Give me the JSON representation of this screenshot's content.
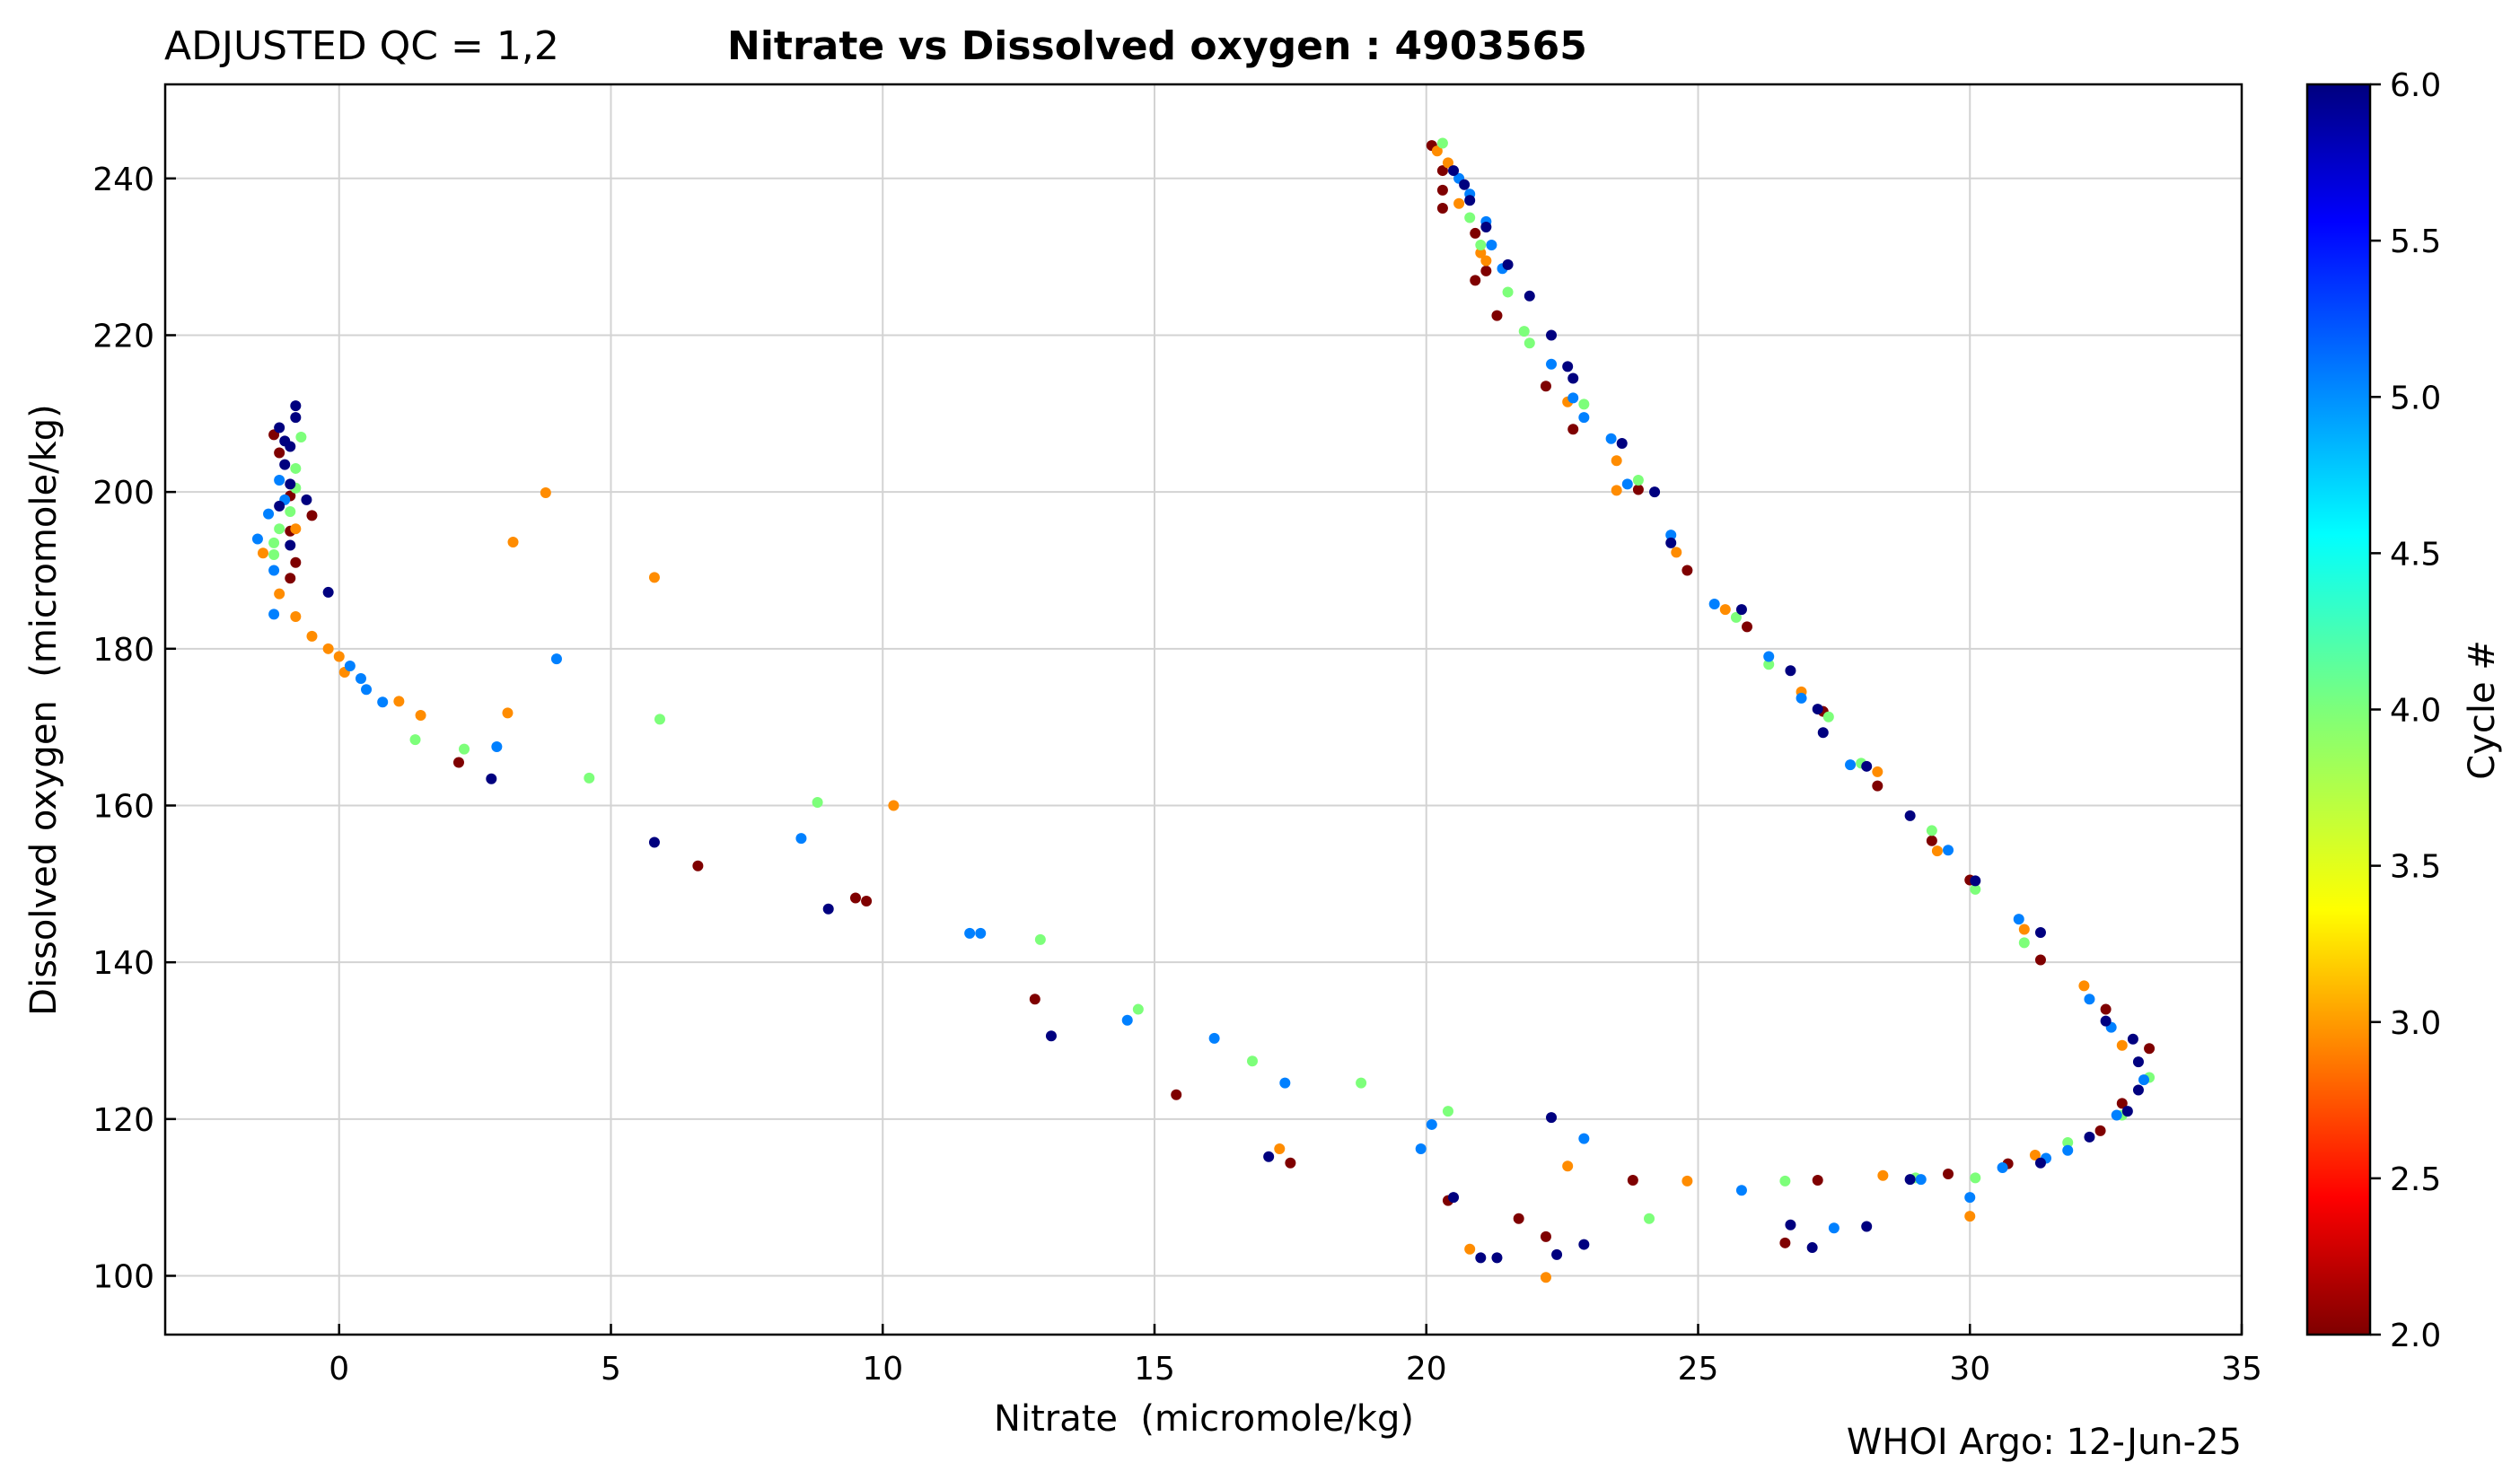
{
  "header": {
    "qc_label": "ADJUSTED QC = 1,2",
    "title": "Nitrate vs Dissolved oxygen : 4903565"
  },
  "footer": {
    "credit": "WHOI Argo: 12-Jun-25"
  },
  "chart_data": {
    "type": "scatter",
    "title": "Nitrate vs Dissolved oxygen : 4903565",
    "xlabel": "Nitrate  (micromole/kg)",
    "ylabel": "Dissolved oxygen  (micromole/kg)",
    "xlim": [
      -3.2,
      35
    ],
    "ylim": [
      92.5,
      252
    ],
    "x_ticks": [
      0,
      5,
      10,
      15,
      20,
      25,
      30,
      35
    ],
    "y_ticks": [
      100,
      120,
      140,
      160,
      180,
      200,
      220,
      240
    ],
    "grid": true,
    "colorbar": {
      "label": "Cycle #",
      "min": 2.0,
      "max": 6.0,
      "ticks": [
        "2.0",
        "2.5",
        "3.0",
        "3.5",
        "4.0",
        "4.5",
        "5.0",
        "5.5",
        "6.0"
      ],
      "colormap": "jet"
    },
    "series": [
      {
        "cycle": 2,
        "color": "#7f0000",
        "points": [
          [
            -1.2,
            207.3
          ],
          [
            -1.1,
            205.0
          ],
          [
            -0.9,
            199.5
          ],
          [
            -0.9,
            195.0
          ],
          [
            -0.8,
            191.0
          ],
          [
            -0.9,
            189.0
          ],
          [
            -0.5,
            197.0
          ],
          [
            2.2,
            165.5
          ],
          [
            6.6,
            152.3
          ],
          [
            9.5,
            148.2
          ],
          [
            9.7,
            147.8
          ],
          [
            12.8,
            135.3
          ],
          [
            15.4,
            123.1
          ],
          [
            17.5,
            114.4
          ],
          [
            20.1,
            244.2
          ],
          [
            20.3,
            241.0
          ],
          [
            20.3,
            238.5
          ],
          [
            20.3,
            236.2
          ],
          [
            20.9,
            233.0
          ],
          [
            20.9,
            227.0
          ],
          [
            21.1,
            228.2
          ],
          [
            21.3,
            222.5
          ],
          [
            22.2,
            213.5
          ],
          [
            22.7,
            208.0
          ],
          [
            23.9,
            200.3
          ],
          [
            24.8,
            190.0
          ],
          [
            25.9,
            182.8
          ],
          [
            27.3,
            172.0
          ],
          [
            28.3,
            162.5
          ],
          [
            29.3,
            155.5
          ],
          [
            30.0,
            150.5
          ],
          [
            31.3,
            140.3
          ],
          [
            32.5,
            134.0
          ],
          [
            33.3,
            129.0
          ],
          [
            32.8,
            122.0
          ],
          [
            32.4,
            118.5
          ],
          [
            30.7,
            114.3
          ],
          [
            29.6,
            113.0
          ],
          [
            27.2,
            112.2
          ],
          [
            23.8,
            112.2
          ],
          [
            20.4,
            109.6
          ],
          [
            21.7,
            107.3
          ],
          [
            22.2,
            105.0
          ],
          [
            26.6,
            104.2
          ]
        ]
      },
      {
        "cycle": 3,
        "color": "#ff8c00",
        "points": [
          [
            -1.4,
            192.2
          ],
          [
            -1.1,
            187.0
          ],
          [
            -0.8,
            184.1
          ],
          [
            -0.8,
            195.3
          ],
          [
            -0.5,
            181.6
          ],
          [
            -0.2,
            180.0
          ],
          [
            0.0,
            179.0
          ],
          [
            0.1,
            177.0
          ],
          [
            1.1,
            173.3
          ],
          [
            1.5,
            171.5
          ],
          [
            3.1,
            171.8
          ],
          [
            3.8,
            199.9
          ],
          [
            3.2,
            193.6
          ],
          [
            5.8,
            189.1
          ],
          [
            10.2,
            160.0
          ],
          [
            17.3,
            116.2
          ],
          [
            20.2,
            243.5
          ],
          [
            20.4,
            242.0
          ],
          [
            20.6,
            236.8
          ],
          [
            21.0,
            230.5
          ],
          [
            21.1,
            229.5
          ],
          [
            22.6,
            211.5
          ],
          [
            23.5,
            204.0
          ],
          [
            23.5,
            200.2
          ],
          [
            24.6,
            192.3
          ],
          [
            25.5,
            185.0
          ],
          [
            26.9,
            174.5
          ],
          [
            28.3,
            164.3
          ],
          [
            29.4,
            154.2
          ],
          [
            31.0,
            144.2
          ],
          [
            32.1,
            137.0
          ],
          [
            32.8,
            129.4
          ],
          [
            31.2,
            115.4
          ],
          [
            28.4,
            112.8
          ],
          [
            24.8,
            112.1
          ],
          [
            22.6,
            114.0
          ],
          [
            20.8,
            103.4
          ],
          [
            22.2,
            99.8
          ],
          [
            30.0,
            107.6
          ]
        ]
      },
      {
        "cycle": 4,
        "color": "#7dff7a",
        "points": [
          [
            -1.2,
            193.5
          ],
          [
            -0.9,
            197.5
          ],
          [
            -0.8,
            200.5
          ],
          [
            -0.8,
            203.0
          ],
          [
            -0.7,
            207.0
          ],
          [
            -1.1,
            195.3
          ],
          [
            -1.2,
            192.0
          ],
          [
            1.4,
            168.4
          ],
          [
            2.3,
            167.2
          ],
          [
            4.6,
            163.5
          ],
          [
            5.9,
            171.0
          ],
          [
            8.8,
            160.4
          ],
          [
            12.9,
            142.9
          ],
          [
            14.7,
            134.0
          ],
          [
            16.8,
            127.4
          ],
          [
            18.8,
            124.6
          ],
          [
            20.4,
            121.0
          ],
          [
            20.3,
            244.5
          ],
          [
            20.8,
            235.0
          ],
          [
            21.0,
            231.5
          ],
          [
            21.5,
            225.5
          ],
          [
            21.8,
            220.5
          ],
          [
            21.9,
            219.0
          ],
          [
            22.9,
            211.2
          ],
          [
            23.9,
            201.5
          ],
          [
            25.7,
            184.0
          ],
          [
            26.3,
            178.0
          ],
          [
            27.4,
            171.3
          ],
          [
            28.0,
            165.4
          ],
          [
            29.3,
            156.8
          ],
          [
            30.1,
            149.3
          ],
          [
            31.0,
            142.5
          ],
          [
            31.8,
            117.0
          ],
          [
            32.8,
            120.5
          ],
          [
            33.3,
            125.3
          ],
          [
            30.1,
            112.5
          ],
          [
            29.0,
            112.5
          ],
          [
            26.6,
            112.1
          ],
          [
            24.1,
            107.3
          ]
        ]
      },
      {
        "cycle": 5,
        "color": "#0080ff",
        "points": [
          [
            -1.5,
            194.0
          ],
          [
            -1.3,
            197.2
          ],
          [
            -1.2,
            190.0
          ],
          [
            -1.2,
            184.4
          ],
          [
            -1.1,
            201.5
          ],
          [
            -1.0,
            199.0
          ],
          [
            0.2,
            177.8
          ],
          [
            0.4,
            176.2
          ],
          [
            0.5,
            174.8
          ],
          [
            0.8,
            173.2
          ],
          [
            2.9,
            167.5
          ],
          [
            4.0,
            178.7
          ],
          [
            8.5,
            155.8
          ],
          [
            11.6,
            143.7
          ],
          [
            11.8,
            143.7
          ],
          [
            14.5,
            132.6
          ],
          [
            16.1,
            130.3
          ],
          [
            17.4,
            124.6
          ],
          [
            19.9,
            116.2
          ],
          [
            20.1,
            119.3
          ],
          [
            22.9,
            117.5
          ],
          [
            20.6,
            240.0
          ],
          [
            20.8,
            238.0
          ],
          [
            21.1,
            234.5
          ],
          [
            21.2,
            231.5
          ],
          [
            21.4,
            228.5
          ],
          [
            22.3,
            216.3
          ],
          [
            22.7,
            212.0
          ],
          [
            22.9,
            209.5
          ],
          [
            23.4,
            206.8
          ],
          [
            23.7,
            201.0
          ],
          [
            24.5,
            194.5
          ],
          [
            25.3,
            185.7
          ],
          [
            26.3,
            179.0
          ],
          [
            26.9,
            173.7
          ],
          [
            27.8,
            165.2
          ],
          [
            29.6,
            154.3
          ],
          [
            30.9,
            145.5
          ],
          [
            32.2,
            135.3
          ],
          [
            32.6,
            131.7
          ],
          [
            33.2,
            125.0
          ],
          [
            32.7,
            120.5
          ],
          [
            31.8,
            116.0
          ],
          [
            31.4,
            115.0
          ],
          [
            30.6,
            113.8
          ],
          [
            29.1,
            112.3
          ],
          [
            27.5,
            106.1
          ],
          [
            25.8,
            110.9
          ],
          [
            30.0,
            110.0
          ]
        ]
      },
      {
        "cycle": 6,
        "color": "#00007f",
        "points": [
          [
            -1.1,
            208.2
          ],
          [
            -1.0,
            206.5
          ],
          [
            -1.0,
            203.5
          ],
          [
            -0.9,
            201.0
          ],
          [
            -0.8,
            209.5
          ],
          [
            -0.8,
            211.0
          ],
          [
            -0.9,
            205.8
          ],
          [
            -1.1,
            198.2
          ],
          [
            -0.9,
            193.2
          ],
          [
            -0.6,
            199.0
          ],
          [
            -0.2,
            187.2
          ],
          [
            2.8,
            163.4
          ],
          [
            5.8,
            155.3
          ],
          [
            9.0,
            146.8
          ],
          [
            13.1,
            130.6
          ],
          [
            17.1,
            115.2
          ],
          [
            20.5,
            110.0
          ],
          [
            21.0,
            102.3
          ],
          [
            21.3,
            102.3
          ],
          [
            22.3,
            120.2
          ],
          [
            22.4,
            102.7
          ],
          [
            22.9,
            104.0
          ],
          [
            27.1,
            103.6
          ],
          [
            28.1,
            106.3
          ],
          [
            20.5,
            241.0
          ],
          [
            20.7,
            239.2
          ],
          [
            20.8,
            237.2
          ],
          [
            21.1,
            233.8
          ],
          [
            21.5,
            229.0
          ],
          [
            21.9,
            225.0
          ],
          [
            22.3,
            220.0
          ],
          [
            22.6,
            216.0
          ],
          [
            22.7,
            214.5
          ],
          [
            23.6,
            206.2
          ],
          [
            24.5,
            193.5
          ],
          [
            24.2,
            200.0
          ],
          [
            25.8,
            185.0
          ],
          [
            26.7,
            177.2
          ],
          [
            27.2,
            172.3
          ],
          [
            27.3,
            169.3
          ],
          [
            28.1,
            165.0
          ],
          [
            28.9,
            158.7
          ],
          [
            30.1,
            150.4
          ],
          [
            31.3,
            143.8
          ],
          [
            32.5,
            132.5
          ],
          [
            33.0,
            130.2
          ],
          [
            33.1,
            127.3
          ],
          [
            33.1,
            123.7
          ],
          [
            32.9,
            121.0
          ],
          [
            32.2,
            117.7
          ],
          [
            31.3,
            114.4
          ],
          [
            28.9,
            112.3
          ],
          [
            26.7,
            106.5
          ]
        ]
      }
    ]
  }
}
